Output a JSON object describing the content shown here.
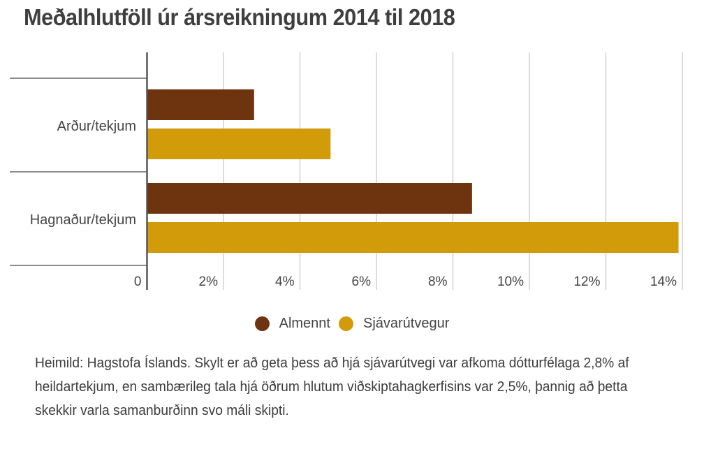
{
  "title": "Meðalhlutföll úr ársreikningum 2014 til 2018",
  "chart_data": {
    "type": "bar",
    "orientation": "horizontal",
    "title": "Meðalhlutföll úr ársreikningum 2014 til 2018",
    "categories": [
      "Arður/tekjum",
      "Hagnaður/tekjum"
    ],
    "series": [
      {
        "name": "Almennt",
        "color": "#6e3410",
        "values": [
          2.8,
          8.5
        ]
      },
      {
        "name": "Sjávarútvegur",
        "color": "#d19b0a",
        "values": [
          4.8,
          13.9
        ]
      }
    ],
    "xlim": [
      0,
      14
    ],
    "xticks": [
      0,
      2,
      4,
      6,
      8,
      10,
      12,
      14
    ],
    "xtick_labels": [
      "0",
      "2%",
      "4%",
      "6%",
      "8%",
      "10%",
      "12%",
      "14%"
    ],
    "xlabel": "",
    "ylabel": "",
    "grid": true,
    "legend_position": "bottom-center"
  },
  "legend": [
    {
      "label": "Almennt",
      "color": "#6e3410"
    },
    {
      "label": "Sjávarútvegur",
      "color": "#d19b0a"
    }
  ],
  "note": "Heimild: Hagstofa Íslands. Skylt er að geta þess að hjá sjávarútvegi var afkoma dótturfélaga 2,8% af heildartekjum, en sambærileg tala hjá öðrum hlutum viðskiptahagkerfisins var 2,5%, þannig að þetta skekkir varla samanburðinn svo máli skipti."
}
